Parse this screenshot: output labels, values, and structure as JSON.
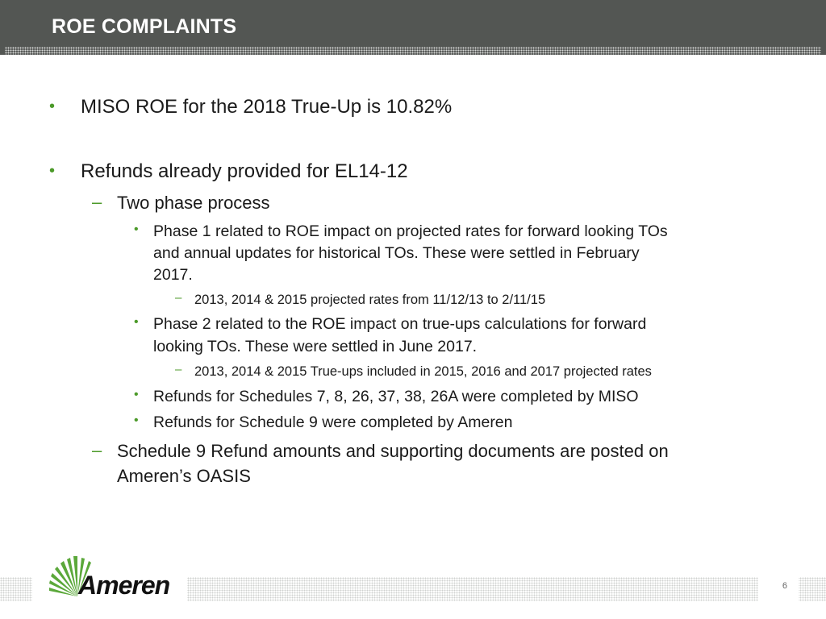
{
  "header": {
    "title": "ROE COMPLAINTS"
  },
  "bullets": {
    "b1": "MISO ROE for the 2018 True-Up is 10.82%",
    "b2": "Refunds already provided for EL14-12",
    "b2a": "Two phase process",
    "b2a_i_line1": "Phase 1 related to ROE impact on projected rates for forward looking TOs",
    "b2a_i_line2": "and annual updates for historical TOs.  These were settled in February",
    "b2a_i_line3": "2017.",
    "b2a_i_sub": "2013, 2014 & 2015 projected rates from 11/12/13 to 2/11/15",
    "b2a_ii_line1": "Phase 2 related to the ROE impact on true-ups calculations for forward",
    "b2a_ii_line2": "looking TOs.  These were settled in June 2017.",
    "b2a_ii_sub": "2013, 2014 & 2015 True-ups included in 2015, 2016 and 2017 projected rates",
    "b2a_iii": "Refunds for Schedules 7, 8, 26, 37, 38, 26A were completed by MISO",
    "b2a_iv": "Refunds for Schedule 9 were completed by Ameren",
    "b2b_line1": "Schedule 9 Refund amounts and supporting documents are posted on",
    "b2b_line2": "Ameren’s OASIS"
  },
  "markers": {
    "bullet": "•",
    "dash": "–"
  },
  "footer": {
    "logo_text": "Ameren",
    "page_number": "6"
  },
  "colors": {
    "header_bg": "#535653",
    "accent": "#4c9a2a",
    "text": "#1a1a1a"
  }
}
